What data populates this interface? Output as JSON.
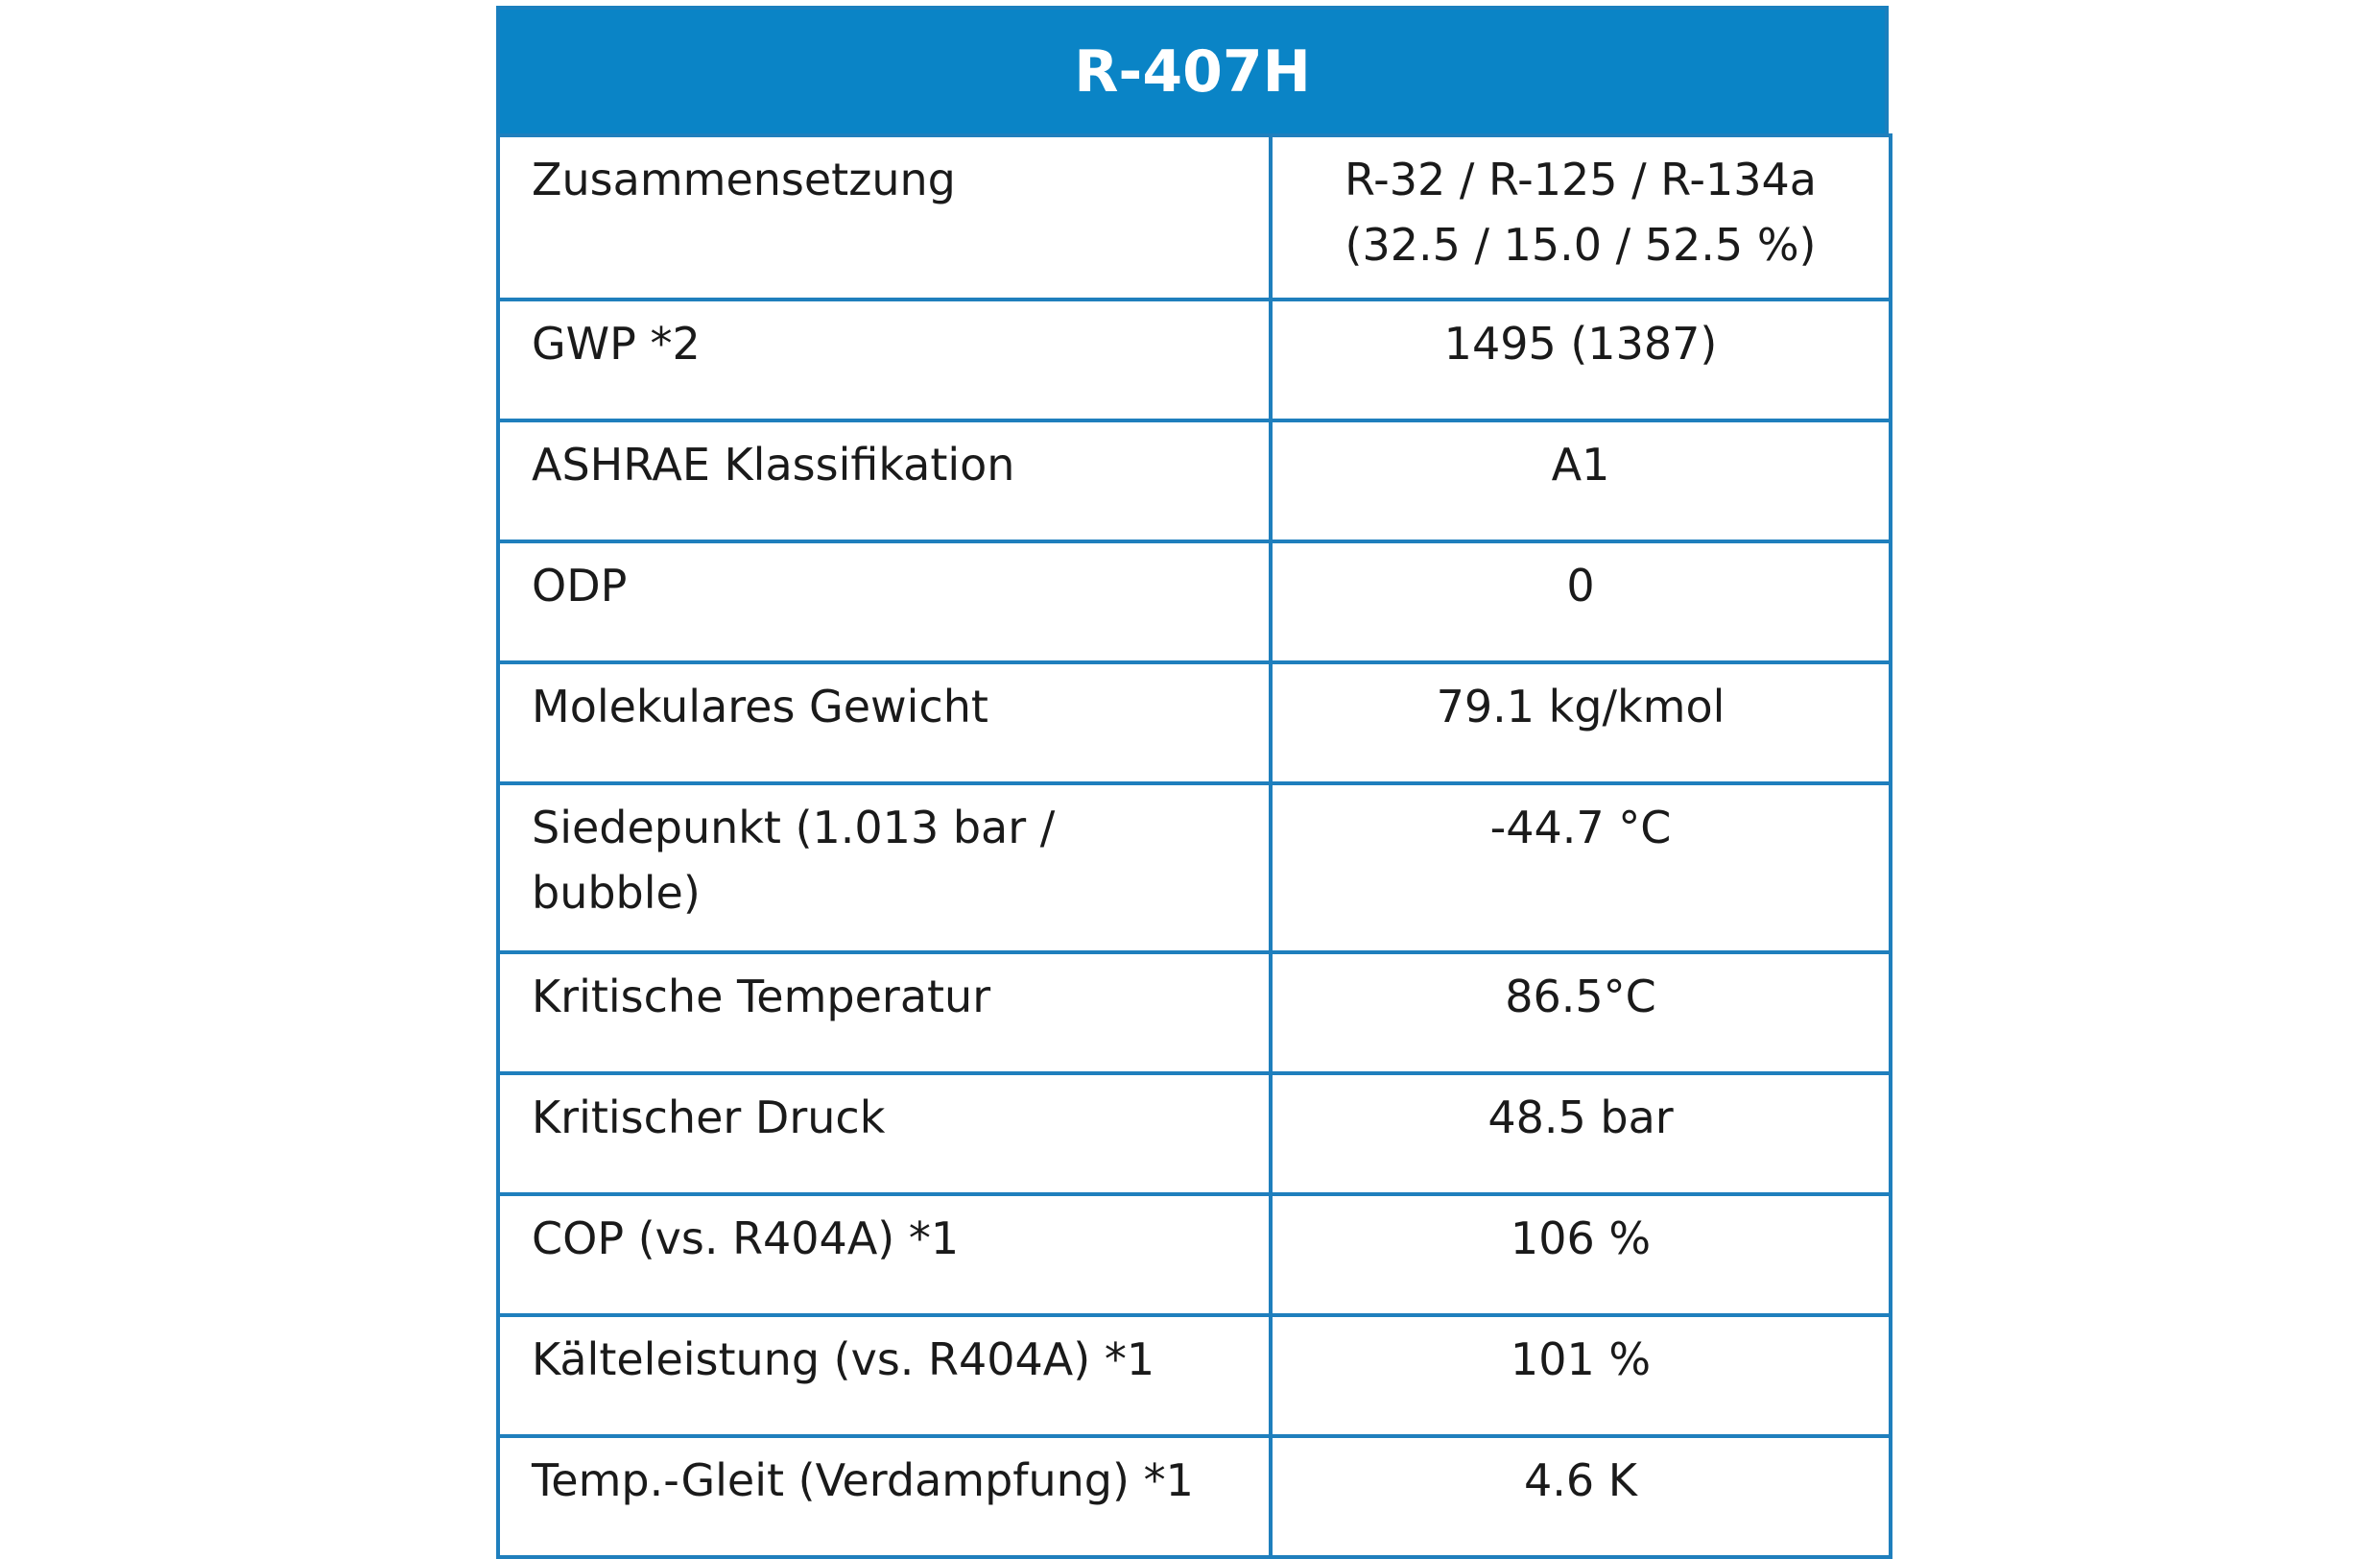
{
  "table": {
    "title": "R-407H",
    "rows": [
      {
        "label": "Zusammensetzung",
        "value_lines": [
          "R-32 / R-125 / R-134a",
          "(32.5 / 15.0 / 52.5 %)"
        ]
      },
      {
        "label": "GWP *2",
        "value_lines": [
          "1495 (1387)"
        ]
      },
      {
        "label": "ASHRAE Klassifikation",
        "value_lines": [
          "A1"
        ]
      },
      {
        "label": "ODP",
        "value_lines": [
          "0"
        ]
      },
      {
        "label": "Molekulares Gewicht",
        "value_lines": [
          "79.1 kg/kmol"
        ]
      },
      {
        "label": "Siedepunkt (1.013 bar / bubble)",
        "value_lines": [
          "-44.7 °C"
        ]
      },
      {
        "label": "Kritische Temperatur",
        "value_lines": [
          "86.5°C"
        ]
      },
      {
        "label": "Kritischer Druck",
        "value_lines": [
          "48.5 bar"
        ]
      },
      {
        "label": "COP (vs. R404A) *1",
        "value_lines": [
          "106 %"
        ]
      },
      {
        "label": "Kälteleistung (vs. R404A) *1",
        "value_lines": [
          "101 %"
        ]
      },
      {
        "label": "Temp.-Gleit (Verdampfung) *1",
        "value_lines": [
          "4.6 K"
        ]
      }
    ]
  },
  "colors": {
    "header_bg": "#0a84c6",
    "border": "#1f7fbd",
    "header_text": "#ffffff"
  }
}
